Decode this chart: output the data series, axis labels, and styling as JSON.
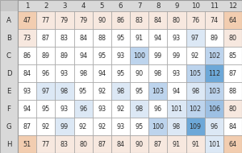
{
  "rows": [
    "A",
    "B",
    "C",
    "D",
    "E",
    "F",
    "G",
    "H"
  ],
  "cols": [
    "1",
    "2",
    "3",
    "4",
    "5",
    "6",
    "7",
    "8",
    "9",
    "10",
    "11",
    "12"
  ],
  "values": [
    [
      47,
      77,
      79,
      79,
      90,
      86,
      83,
      84,
      80,
      76,
      74,
      64
    ],
    [
      73,
      87,
      83,
      84,
      88,
      95,
      91,
      94,
      93,
      97,
      89,
      80
    ],
    [
      86,
      89,
      89,
      94,
      95,
      93,
      100,
      99,
      99,
      92,
      102,
      85
    ],
    [
      84,
      96,
      93,
      98,
      94,
      95,
      90,
      98,
      93,
      105,
      112,
      87
    ],
    [
      93,
      97,
      98,
      95,
      92,
      98,
      95,
      103,
      94,
      98,
      103,
      88
    ],
    [
      94,
      95,
      93,
      96,
      93,
      92,
      98,
      96,
      101,
      102,
      106,
      80
    ],
    [
      87,
      92,
      99,
      92,
      92,
      93,
      95,
      100,
      98,
      109,
      96,
      84
    ],
    [
      51,
      77,
      83,
      80,
      87,
      84,
      90,
      87,
      91,
      91,
      101,
      64
    ]
  ],
  "cell_colors": [
    [
      "#f2cdb0",
      "#f7e8df",
      "#f7e8df",
      "#f7e8df",
      "#f7e8df",
      "#f7e8df",
      "#f7e8df",
      "#f7e8df",
      "#f7e8df",
      "#f7e8df",
      "#f7e8df",
      "#f2cdb0"
    ],
    [
      "#f7e8df",
      "#ffffff",
      "#ffffff",
      "#ffffff",
      "#ffffff",
      "#ffffff",
      "#ffffff",
      "#ffffff",
      "#ffffff",
      "#dce8f5",
      "#ffffff",
      "#f7e8df"
    ],
    [
      "#ffffff",
      "#ffffff",
      "#ffffff",
      "#ffffff",
      "#ffffff",
      "#ffffff",
      "#bdd4ed",
      "#ffffff",
      "#ffffff",
      "#ffffff",
      "#bdd4ed",
      "#ffffff"
    ],
    [
      "#ffffff",
      "#ffffff",
      "#ffffff",
      "#ffffff",
      "#ffffff",
      "#ffffff",
      "#ffffff",
      "#ffffff",
      "#ffffff",
      "#bdd4ed",
      "#6da8d8",
      "#ffffff"
    ],
    [
      "#ffffff",
      "#dce8f5",
      "#dce8f5",
      "#ffffff",
      "#ffffff",
      "#dce8f5",
      "#ffffff",
      "#bdd4ed",
      "#ffffff",
      "#dce8f5",
      "#bdd4ed",
      "#ffffff"
    ],
    [
      "#ffffff",
      "#ffffff",
      "#ffffff",
      "#dce8f5",
      "#ffffff",
      "#ffffff",
      "#dce8f5",
      "#ffffff",
      "#dce8f5",
      "#bdd4ed",
      "#9dc0e3",
      "#f7e8df"
    ],
    [
      "#ffffff",
      "#ffffff",
      "#dce8f5",
      "#ffffff",
      "#ffffff",
      "#ffffff",
      "#ffffff",
      "#bdd4ed",
      "#dce8f5",
      "#6da8d8",
      "#dce8f5",
      "#ffffff"
    ],
    [
      "#f2cdb0",
      "#f7e8df",
      "#f7e8df",
      "#f7e8df",
      "#f7e8df",
      "#f7e8df",
      "#f7e8df",
      "#f7e8df",
      "#f7e8df",
      "#f7e8df",
      "#dce8f5",
      "#f2cdb0"
    ]
  ],
  "header_bg": "#d9d9d9",
  "border_color": "#999999",
  "text_color": "#2d2d2d",
  "font_size": 5.8,
  "header_font_size": 6.2,
  "bg_color": "#c8c8c8"
}
